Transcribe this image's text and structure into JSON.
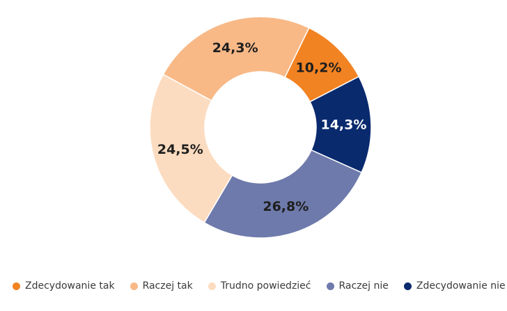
{
  "chart_data": {
    "type": "pie",
    "donut": true,
    "slices": [
      {
        "label": "Zdecydowanie tak",
        "value": 10.2,
        "display": "10,2%",
        "color": "#f28322",
        "text_color": "#1e1e1e"
      },
      {
        "label": "Zdecydowanie nie",
        "value": 14.3,
        "display": "14,3%",
        "color": "#0a2a6e",
        "text_color": "#ffffff"
      },
      {
        "label": "Raczej nie",
        "value": 26.8,
        "display": "26,8%",
        "color": "#6e7aab",
        "text_color": "#1e1e1e"
      },
      {
        "label": "Trudno powiedzieć",
        "value": 24.5,
        "display": "24,5%",
        "color": "#fcdcc0",
        "text_color": "#1e1e1e"
      },
      {
        "label": "Raczej tak",
        "value": 24.3,
        "display": "24,3%",
        "color": "#f8b987",
        "text_color": "#1e1e1e"
      }
    ],
    "legend": {
      "position": "bottom",
      "items": [
        {
          "label": "Zdecydowanie tak",
          "color": "#f28322"
        },
        {
          "label": "Raczej tak",
          "color": "#f8b987"
        },
        {
          "label": "Trudno powiedzieć",
          "color": "#fcdcc0"
        },
        {
          "label": "Raczej nie",
          "color": "#6e7aab"
        },
        {
          "label": "Zdecydowanie nie",
          "color": "#0a2a6e"
        }
      ]
    }
  }
}
